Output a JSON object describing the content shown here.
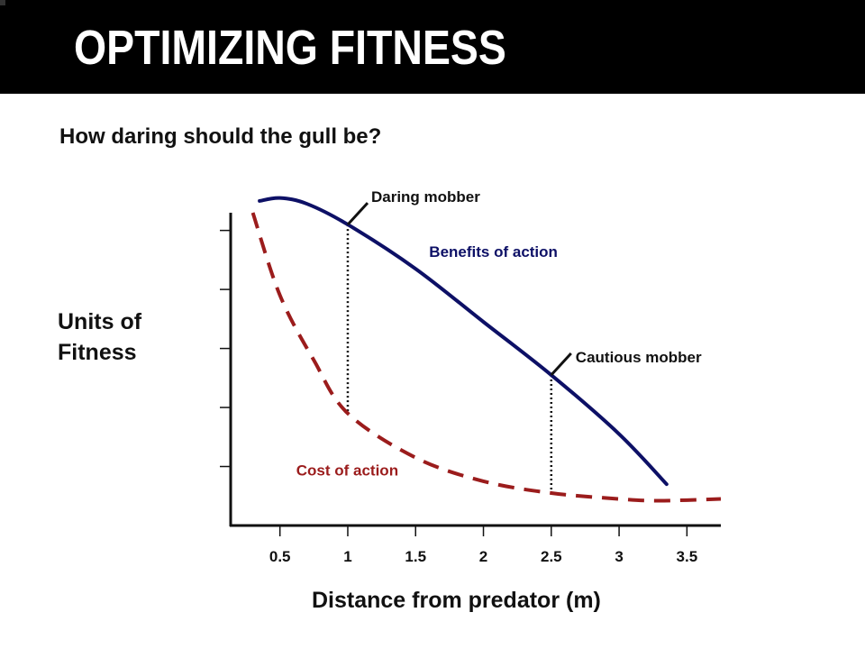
{
  "slide": {
    "title": "OPTIMIZING FITNESS",
    "subtitle": "How daring should the gull be?"
  },
  "colors": {
    "title_bar": "#000000",
    "benefits_line": "#0d1066",
    "cost_line": "#9b1c1c",
    "annotation_black": "#111111"
  },
  "chart_data": {
    "type": "line",
    "xlabel": "Distance from predator (m)",
    "ylabel": "Units of Fitness",
    "xlim": [
      0.15,
      3.75
    ],
    "ylim": [
      0,
      5.3
    ],
    "x_ticks": [
      "0.5",
      "1",
      "1.5",
      "2",
      "2.5",
      "3",
      "3.5"
    ],
    "x_tick_values": [
      0.5,
      1,
      1.5,
      2,
      2.5,
      3,
      3.5
    ],
    "y_tick_values": [
      1,
      2,
      3,
      4,
      5
    ],
    "y_tick_labels_shown": false,
    "grid": false,
    "series": [
      {
        "name": "Benefits of action",
        "style": "solid",
        "color": "#0d1066",
        "points": [
          [
            0.35,
            5.5
          ],
          [
            0.5,
            5.55
          ],
          [
            0.7,
            5.45
          ],
          [
            1.0,
            5.1
          ],
          [
            1.5,
            4.35
          ],
          [
            2.0,
            3.45
          ],
          [
            2.5,
            2.55
          ],
          [
            3.0,
            1.55
          ],
          [
            3.35,
            0.7
          ]
        ]
      },
      {
        "name": "Cost of action",
        "style": "dashed",
        "color": "#9b1c1c",
        "points": [
          [
            0.3,
            5.3
          ],
          [
            0.5,
            3.9
          ],
          [
            0.75,
            2.8
          ],
          [
            1.0,
            1.9
          ],
          [
            1.5,
            1.15
          ],
          [
            2.0,
            0.75
          ],
          [
            2.5,
            0.55
          ],
          [
            3.0,
            0.45
          ],
          [
            3.25,
            0.42
          ],
          [
            3.5,
            0.43
          ],
          [
            3.75,
            0.45
          ]
        ]
      }
    ],
    "markers": [
      {
        "label": "Daring mobber",
        "x": 1.0
      },
      {
        "label": "Cautious mobber",
        "x": 2.5
      }
    ]
  }
}
